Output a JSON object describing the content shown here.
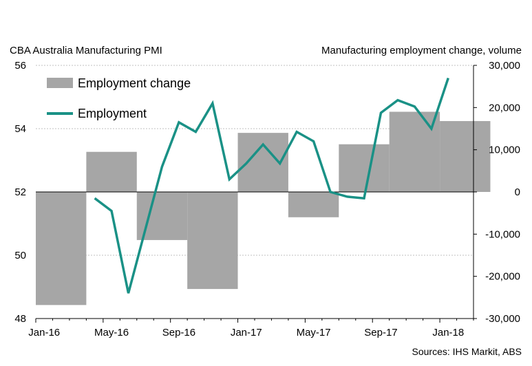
{
  "chart_data": {
    "type": "bar+line",
    "title_left": "CBA Australia Manufacturing  PMI",
    "title_right": "Manufacturing employment  change, volume",
    "source": "Sources: IHS Markit, ABS",
    "x_tick_labels": [
      "Jan-16",
      "May-16",
      "Sep-16",
      "Jan-17",
      "May-17",
      "Sep-17",
      "Jan-18"
    ],
    "y_left": {
      "min": 48,
      "max": 56,
      "ticks": [
        "48",
        "50",
        "52",
        "54",
        "56"
      ]
    },
    "y_right": {
      "min": -30000,
      "max": 30000,
      "ticks": [
        "-30,000",
        "-20,000",
        "-10,000",
        "0",
        "10,000",
        "20,000",
        "30,000"
      ]
    },
    "grid": "horizontal dashed",
    "bar_series": {
      "name": "Employment change",
      "color": "#a6a6a6",
      "unit": "right",
      "quarters": [
        "Q1-16",
        "Q2-16",
        "Q3-16",
        "Q4-16",
        "Q1-17",
        "Q2-17",
        "Q3-17",
        "Q4-17",
        "Q1-18"
      ],
      "values": [
        -26800,
        9500,
        -11400,
        -23000,
        14000,
        -6000,
        11300,
        19000,
        16800
      ]
    },
    "line_series": {
      "name": "Employment",
      "color": "#1a9186",
      "unit": "left",
      "months": [
        "Apr-16",
        "May-16",
        "Jun-16",
        "Jul-16",
        "Aug-16",
        "Sep-16",
        "Oct-16",
        "Nov-16",
        "Dec-16",
        "Jan-17",
        "Feb-17",
        "Mar-17",
        "Apr-17",
        "May-17",
        "Jun-17",
        "Jul-17",
        "Aug-17",
        "Sep-17",
        "Oct-17",
        "Nov-17",
        "Dec-17",
        "Jan-18",
        "Feb-18"
      ],
      "values": [
        51.8,
        51.4,
        48.8,
        50.8,
        52.8,
        54.2,
        53.9,
        54.8,
        52.4,
        52.9,
        53.5,
        52.9,
        53.9,
        53.6,
        52.0,
        51.85,
        51.8,
        54.5,
        54.9,
        54.7,
        54.0,
        55.6,
        null
      ]
    },
    "legend": [
      {
        "label": "Employment change",
        "kind": "bar"
      },
      {
        "label": "Employment",
        "kind": "line"
      }
    ],
    "legend_position": "top-left"
  }
}
